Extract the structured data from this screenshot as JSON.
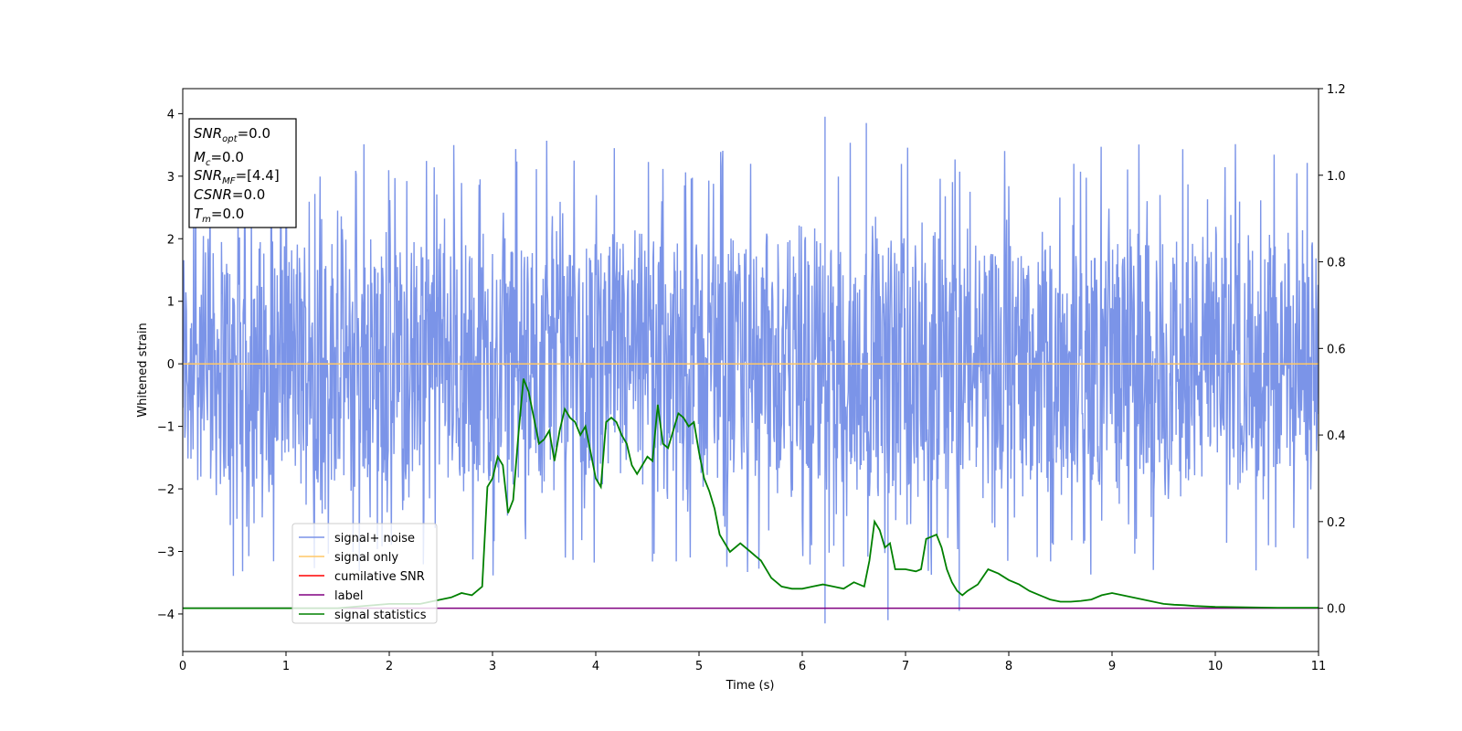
{
  "chart_data": {
    "type": "line",
    "xlabel": "Time (s)",
    "ylabel": "Whitened strain",
    "xlim": [
      0,
      11
    ],
    "ylim": [
      -4.6,
      4.4
    ],
    "y2lim": [
      -0.1,
      1.2
    ],
    "x_ticks": [
      0,
      1,
      2,
      3,
      4,
      5,
      6,
      7,
      8,
      9,
      10,
      11
    ],
    "y_ticks": [
      -4,
      -3,
      -2,
      -1,
      0,
      1,
      2,
      3,
      4
    ],
    "y2_ticks": [
      0.0,
      0.2,
      0.4,
      0.6,
      0.8,
      1.0,
      1.2
    ],
    "x_tick_labels": [
      "0",
      "1",
      "2",
      "3",
      "4",
      "5",
      "6",
      "7",
      "8",
      "9",
      "10",
      "11"
    ],
    "y_tick_labels": [
      "−4",
      "−3",
      "−2",
      "−1",
      "0",
      "1",
      "2",
      "3",
      "4"
    ],
    "y2_tick_labels": [
      "0.0",
      "0.2",
      "0.4",
      "0.6",
      "0.8",
      "1.0",
      "1.2"
    ],
    "grid": false,
    "legend_position": "lower-left",
    "series": [
      {
        "name": "signal+ noise",
        "color": "#7b94e8",
        "axis": "left",
        "kind": "noise",
        "typical_range": [
          -2.0,
          2.0
        ],
        "extremes": [
          [
            6.22,
            3.95
          ],
          [
            6.62,
            3.85
          ],
          [
            6.22,
            -4.15
          ],
          [
            6.83,
            -4.1
          ],
          [
            7.52,
            -3.95
          ]
        ]
      },
      {
        "name": "signal only",
        "color": "#ffc766",
        "axis": "left",
        "x": [
          0,
          11
        ],
        "y": [
          0,
          0
        ]
      },
      {
        "name": "cumilative SNR",
        "color": "#ff0000",
        "axis": "left",
        "x": [],
        "y": []
      },
      {
        "name": "label",
        "color": "#800080",
        "axis": "right",
        "x": [
          0,
          11
        ],
        "y": [
          0,
          0
        ]
      },
      {
        "name": "signal statistics",
        "color": "#008000",
        "axis": "right",
        "x": [
          0,
          0.5,
          1.0,
          1.5,
          2.0,
          2.3,
          2.5,
          2.6,
          2.7,
          2.8,
          2.9,
          2.95,
          3.0,
          3.05,
          3.1,
          3.15,
          3.2,
          3.25,
          3.3,
          3.35,
          3.4,
          3.45,
          3.5,
          3.55,
          3.6,
          3.65,
          3.7,
          3.75,
          3.8,
          3.85,
          3.9,
          3.95,
          4.0,
          4.05,
          4.1,
          4.15,
          4.2,
          4.25,
          4.3,
          4.35,
          4.4,
          4.45,
          4.5,
          4.55,
          4.6,
          4.65,
          4.7,
          4.75,
          4.8,
          4.85,
          4.9,
          4.95,
          5.0,
          5.05,
          5.1,
          5.15,
          5.2,
          5.3,
          5.4,
          5.5,
          5.55,
          5.6,
          5.7,
          5.8,
          5.9,
          6.0,
          6.1,
          6.2,
          6.3,
          6.4,
          6.5,
          6.6,
          6.65,
          6.7,
          6.75,
          6.8,
          6.85,
          6.9,
          7.0,
          7.1,
          7.15,
          7.2,
          7.3,
          7.35,
          7.4,
          7.45,
          7.5,
          7.55,
          7.6,
          7.7,
          7.8,
          7.9,
          8.0,
          8.1,
          8.2,
          8.3,
          8.4,
          8.5,
          8.6,
          8.7,
          8.8,
          8.9,
          9.0,
          9.1,
          9.2,
          9.3,
          9.4,
          9.5,
          9.6,
          9.7,
          9.8,
          10.0,
          10.3,
          10.6,
          10.9,
          11.0
        ],
        "y": [
          0.0,
          0.0,
          0.0,
          0.0,
          0.01,
          0.01,
          0.02,
          0.025,
          0.035,
          0.03,
          0.05,
          0.28,
          0.3,
          0.35,
          0.33,
          0.22,
          0.25,
          0.4,
          0.53,
          0.5,
          0.44,
          0.38,
          0.39,
          0.41,
          0.34,
          0.41,
          0.46,
          0.44,
          0.43,
          0.4,
          0.42,
          0.36,
          0.3,
          0.28,
          0.43,
          0.44,
          0.43,
          0.4,
          0.38,
          0.33,
          0.31,
          0.33,
          0.35,
          0.34,
          0.47,
          0.38,
          0.37,
          0.41,
          0.45,
          0.44,
          0.42,
          0.43,
          0.36,
          0.3,
          0.27,
          0.23,
          0.17,
          0.13,
          0.15,
          0.13,
          0.12,
          0.11,
          0.07,
          0.05,
          0.045,
          0.045,
          0.05,
          0.055,
          0.05,
          0.045,
          0.06,
          0.05,
          0.11,
          0.2,
          0.18,
          0.14,
          0.15,
          0.09,
          0.09,
          0.085,
          0.09,
          0.16,
          0.17,
          0.14,
          0.09,
          0.06,
          0.04,
          0.03,
          0.04,
          0.055,
          0.09,
          0.08,
          0.065,
          0.055,
          0.04,
          0.03,
          0.02,
          0.015,
          0.015,
          0.017,
          0.02,
          0.03,
          0.035,
          0.03,
          0.025,
          0.02,
          0.015,
          0.01,
          0.008,
          0.007,
          0.005,
          0.003,
          0.002,
          0.001,
          0.001,
          0.001
        ]
      }
    ]
  },
  "info_box": {
    "snr_opt_main": "SNR",
    "snr_opt_sub": "opt",
    "snr_opt_value": "=0.0",
    "mc_main": "M",
    "mc_sub": "c",
    "mc_value": "=0.0",
    "snr_mf_main": "SNR",
    "snr_mf_sub": "MF",
    "snr_mf_value": "=[4.4]",
    "csnr_main": "CSNR",
    "csnr_value": "=0.0",
    "tm_main": "T",
    "tm_sub": "m",
    "tm_value": "=0.0"
  }
}
